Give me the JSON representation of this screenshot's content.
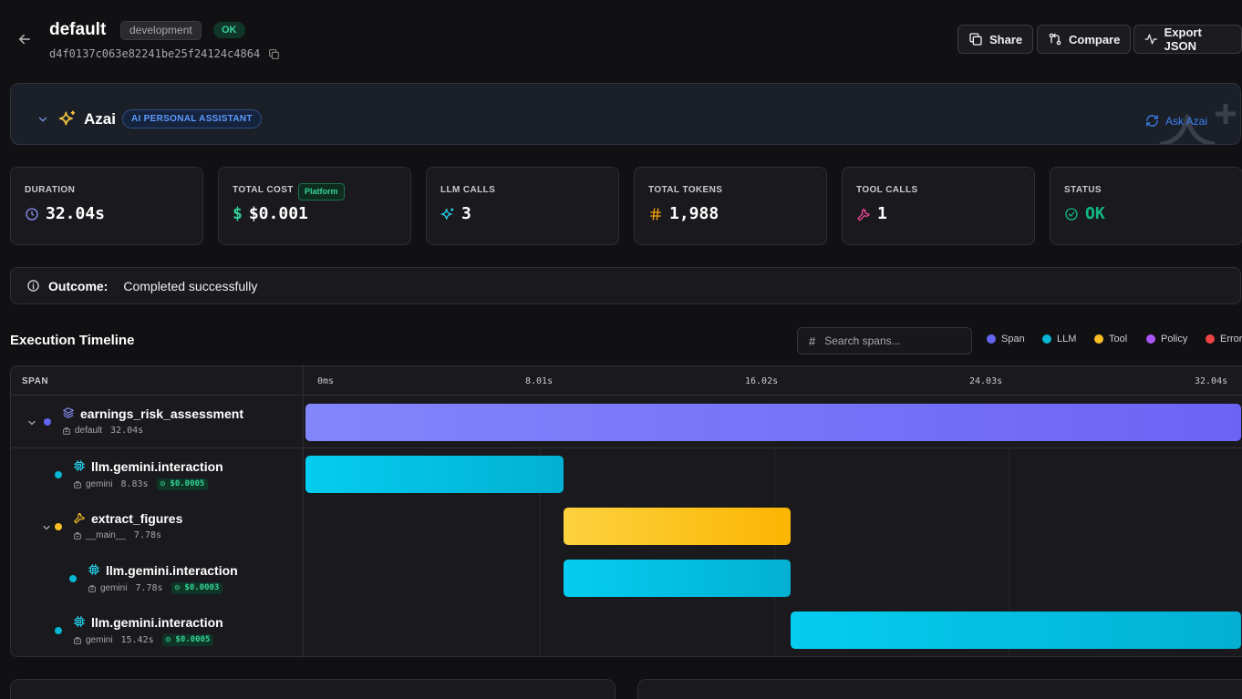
{
  "header": {
    "title": "default",
    "env": "development",
    "status": "OK",
    "trace_id": "d4f0137c063e82241be25f24124c4864",
    "buttons": {
      "share": "Share",
      "compare": "Compare",
      "export": "Export JSON"
    }
  },
  "azai": {
    "name": "Azai",
    "tag": "AI PERSONAL ASSISTANT",
    "ask": "Ask Azai"
  },
  "stats": {
    "duration": {
      "label": "DURATION",
      "value": "32.04s"
    },
    "cost": {
      "label": "TOTAL COST",
      "badge": "Platform",
      "currency": "$",
      "value": "$0.001"
    },
    "llm_calls": {
      "label": "LLM CALLS",
      "value": "3"
    },
    "tokens": {
      "label": "TOTAL TOKENS",
      "value": "1,988"
    },
    "tool_calls": {
      "label": "TOOL CALLS",
      "value": "1"
    },
    "status": {
      "label": "STATUS",
      "value": "OK"
    }
  },
  "outcome": {
    "label": "Outcome:",
    "value": "Completed successfully"
  },
  "timeline": {
    "title": "Execution Timeline",
    "search_placeholder": "Search spans...",
    "legend": [
      {
        "label": "Span",
        "color": "#6366f1"
      },
      {
        "label": "LLM",
        "color": "#06b6d4"
      },
      {
        "label": "Tool",
        "color": "#fbbf24"
      },
      {
        "label": "Policy",
        "color": "#a855f7"
      },
      {
        "label": "Error",
        "color": "#ef4444"
      }
    ],
    "span_header": "SPAN",
    "ticks": [
      "0ms",
      "8.01s",
      "16.02s",
      "24.03s",
      "32.04s"
    ],
    "total_seconds": 32.04,
    "rows": [
      {
        "name": "earnings_risk_assessment",
        "type": "span",
        "owner": "default",
        "duration": "32.04s",
        "cost": "",
        "depth": 0,
        "expandable": true,
        "start": 0,
        "end": 32.04
      },
      {
        "name": "llm.gemini.interaction",
        "type": "llm",
        "owner": "gemini",
        "duration": "8.83s",
        "cost": "$0.0005",
        "depth": 1,
        "expandable": false,
        "start": 0,
        "end": 8.83
      },
      {
        "name": "extract_figures",
        "type": "tool",
        "owner": "__main__",
        "duration": "7.78s",
        "cost": "",
        "depth": 1,
        "expandable": true,
        "start": 8.83,
        "end": 16.61
      },
      {
        "name": "llm.gemini.interaction",
        "type": "llm",
        "owner": "gemini",
        "duration": "7.78s",
        "cost": "$0.0003",
        "depth": 2,
        "expandable": false,
        "start": 8.83,
        "end": 16.61
      },
      {
        "name": "llm.gemini.interaction",
        "type": "llm",
        "owner": "gemini",
        "duration": "15.42s",
        "cost": "$0.0005",
        "depth": 1,
        "expandable": false,
        "start": 16.62,
        "end": 32.04
      }
    ]
  }
}
